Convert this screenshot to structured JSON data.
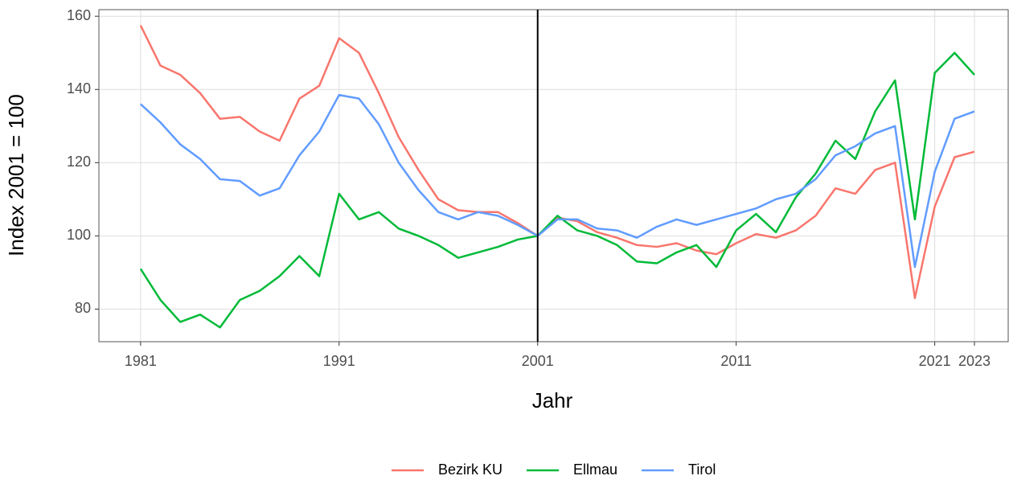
{
  "chart_data": {
    "type": "line",
    "xlabel": "Jahr",
    "ylabel": "Index 2001 = 100",
    "x": [
      1981,
      1982,
      1983,
      1984,
      1985,
      1986,
      1987,
      1988,
      1989,
      1990,
      1991,
      1992,
      1993,
      1994,
      1995,
      1996,
      1997,
      1998,
      1999,
      2000,
      2001,
      2002,
      2003,
      2004,
      2005,
      2006,
      2007,
      2008,
      2009,
      2010,
      2011,
      2012,
      2013,
      2014,
      2015,
      2016,
      2017,
      2018,
      2019,
      2020,
      2021,
      2022,
      2023
    ],
    "series": [
      {
        "name": "Bezirk KU",
        "color": "#f8766d",
        "values": [
          157.5,
          146.5,
          144,
          139,
          132,
          132.5,
          128.5,
          126,
          137.5,
          141,
          154,
          150,
          139,
          127,
          118,
          110,
          107,
          106.5,
          106.5,
          103.5,
          100,
          105,
          104,
          101,
          99.5,
          97.5,
          97,
          98,
          96,
          95,
          98,
          100.5,
          99.5,
          101.5,
          105.5,
          113,
          111.5,
          118,
          120,
          83,
          108,
          121.5,
          123
        ]
      },
      {
        "name": "Ellmau",
        "color": "#00ba38",
        "values": [
          91,
          82.5,
          76.5,
          78.5,
          75,
          82.5,
          85,
          89,
          94.5,
          89,
          111.5,
          104.5,
          106.5,
          102,
          100,
          97.5,
          94,
          95.5,
          97,
          99,
          100,
          105.5,
          101.5,
          100,
          97.5,
          93,
          92.5,
          95.5,
          97.5,
          91.5,
          101.5,
          106,
          101,
          110.5,
          117,
          126,
          121,
          134,
          142.5,
          104.5,
          144.5,
          150,
          144
        ]
      },
      {
        "name": "Tirol",
        "color": "#619cff",
        "values": [
          136,
          131,
          125,
          121,
          115.5,
          115,
          111,
          113,
          122,
          128.5,
          138.5,
          137.5,
          130.5,
          120,
          112.5,
          106.5,
          104.5,
          106.5,
          105.5,
          103,
          100,
          104.5,
          104.5,
          102,
          101.5,
          99.5,
          102.5,
          104.5,
          103,
          104.5,
          106,
          107.5,
          110,
          111.5,
          115.5,
          122,
          124.5,
          128,
          130,
          91.5,
          117.5,
          132,
          134
        ]
      }
    ],
    "xlim": [
      1978.9,
      2024.7
    ],
    "xticks": [
      1981,
      1991,
      2001,
      2011,
      2021,
      2023
    ],
    "ylim": [
      71.1,
      161.8
    ],
    "yticks": [
      80,
      100,
      120,
      140,
      160
    ],
    "vline": 2001,
    "grid": true,
    "legend": "bottom"
  }
}
